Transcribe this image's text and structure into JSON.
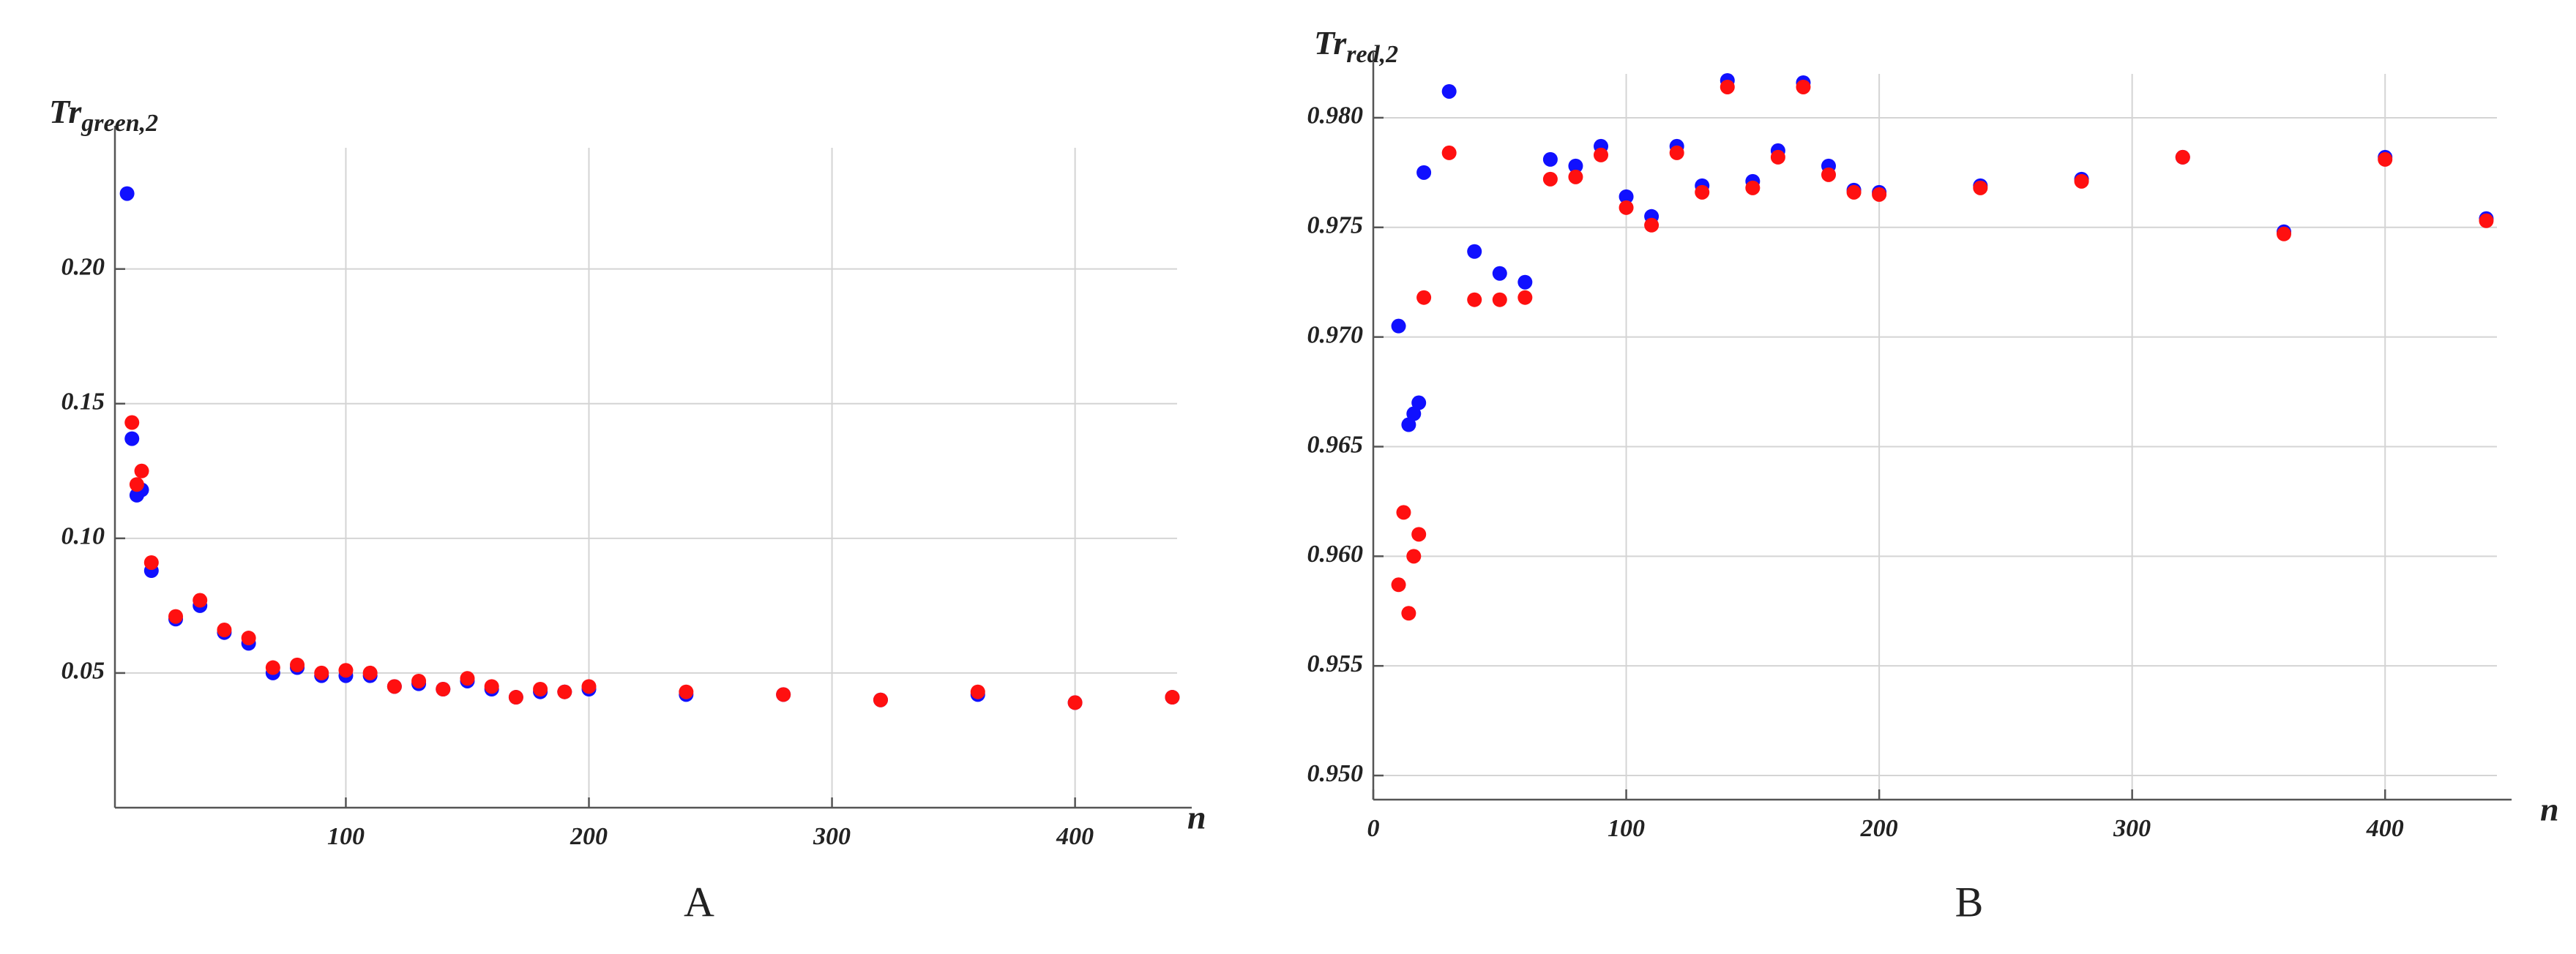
{
  "chart_data": [
    {
      "type": "scatter",
      "panel_label": "A",
      "ylabel": "Tr",
      "ylabel_sub": "green,2",
      "xlabel": "n",
      "x": [
        10,
        12,
        14,
        16,
        18,
        20,
        30,
        40,
        50,
        60,
        70,
        80,
        90,
        100,
        110,
        120,
        130,
        140,
        150,
        160,
        170,
        180,
        190,
        200,
        240,
        280,
        320,
        360,
        400,
        440
      ],
      "series": [
        {
          "color": "#1010ff",
          "values": [
            0.228,
            0.137,
            0.116,
            0.118,
            null,
            0.088,
            0.07,
            0.075,
            0.065,
            0.061,
            0.05,
            0.052,
            0.049,
            0.049,
            0.049,
            0.045,
            0.046,
            0.044,
            0.047,
            0.044,
            0.041,
            0.043,
            0.043,
            0.044,
            0.042,
            0.042,
            0.04,
            0.042,
            0.039,
            0.041
          ]
        },
        {
          "color": "#ff1010",
          "values": [
            null,
            0.143,
            0.12,
            0.125,
            null,
            0.091,
            0.071,
            0.077,
            0.066,
            0.063,
            0.052,
            0.053,
            0.05,
            0.051,
            0.05,
            0.045,
            0.047,
            0.044,
            0.048,
            0.045,
            0.041,
            0.044,
            0.043,
            0.045,
            0.043,
            0.042,
            0.04,
            0.043,
            0.039,
            0.041
          ]
        }
      ],
      "xlim": [
        5,
        448
      ],
      "ylim": [
        0,
        0.245
      ],
      "xticks": [
        100,
        200,
        300,
        400
      ],
      "yticks": [
        0.05,
        {
          "value": 0.1,
          "label": "0.10"
        },
        0.15,
        {
          "value": 0.2,
          "label": "0.20"
        }
      ],
      "grid": true
    },
    {
      "type": "scatter",
      "panel_label": "B",
      "ylabel": "Tr",
      "ylabel_sub": "red,2",
      "xlabel": "n",
      "x": [
        10,
        12,
        14,
        16,
        18,
        20,
        30,
        40,
        50,
        60,
        70,
        80,
        90,
        100,
        110,
        120,
        130,
        140,
        150,
        160,
        170,
        180,
        190,
        200,
        240,
        280,
        320,
        360,
        400,
        440
      ],
      "series": [
        {
          "color": "#1010ff",
          "values": [
            0.9705,
            null,
            0.966,
            0.9665,
            0.967,
            0.9775,
            0.9812,
            0.9739,
            0.9729,
            0.9725,
            0.9781,
            0.9778,
            0.9787,
            0.9764,
            0.9755,
            0.9787,
            0.9769,
            0.9817,
            0.9771,
            0.9785,
            0.9816,
            0.9778,
            0.9767,
            0.9766,
            0.9769,
            0.9772,
            0.9782,
            0.9748,
            0.9782,
            0.9754
          ]
        },
        {
          "color": "#ff1010",
          "values": [
            0.9587,
            0.962,
            0.9574,
            0.96,
            0.961,
            0.9718,
            0.9784,
            0.9717,
            0.9717,
            0.9718,
            0.9772,
            0.9773,
            0.9783,
            0.9759,
            0.9751,
            0.9784,
            0.9766,
            0.9814,
            0.9768,
            0.9782,
            0.9814,
            0.9774,
            0.9766,
            0.9765,
            0.9768,
            0.9771,
            0.9782,
            0.9747,
            0.9781,
            0.9753
          ]
        }
      ],
      "xlim": [
        0,
        450
      ],
      "ylim": [
        0.9489,
        0.982
      ],
      "xticks": [
        0,
        100,
        200,
        300,
        400
      ],
      "yticks": [
        {
          "value": 0.95,
          "label": "0.950"
        },
        0.955,
        {
          "value": 0.96,
          "label": "0.960"
        },
        0.965,
        {
          "value": 0.97,
          "label": "0.970"
        },
        0.975,
        {
          "value": 0.98,
          "label": "0.980"
        }
      ],
      "grid": true
    }
  ]
}
